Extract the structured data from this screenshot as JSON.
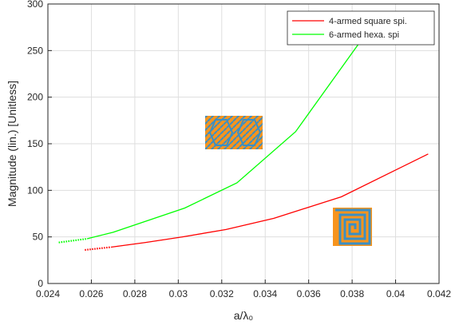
{
  "chart_data": {
    "type": "line",
    "xlabel": "a/λ₀",
    "ylabel": "Magnitude (lin.)  [Unitless]",
    "xlim": [
      0.024,
      0.042
    ],
    "xticks": [
      0.024,
      0.026,
      0.028,
      0.03,
      0.032,
      0.034,
      0.036,
      0.038,
      0.04,
      0.042
    ],
    "ylim": [
      0,
      300
    ],
    "yticks": [
      0,
      50,
      100,
      150,
      200,
      250,
      300
    ],
    "grid": true,
    "legend": "upper right",
    "series": [
      {
        "name": "4-armed square spi.",
        "color": "#ff0000",
        "segments": [
          {
            "style": "dotted",
            "x": [
              0.0257,
              0.0269
            ],
            "values": [
              36,
              39
            ]
          },
          {
            "style": "solid",
            "x": [
              0.0269,
              0.0285,
              0.0302,
              0.0322,
              0.0344,
              0.0375,
              0.0415
            ],
            "values": [
              39,
              44,
              50,
              58,
              70,
              93,
              139
            ]
          }
        ]
      },
      {
        "name": "6-armed hexa. spi",
        "color": "#00ff00",
        "segments": [
          {
            "style": "dotted",
            "x": [
              0.0245,
              0.0258
            ],
            "values": [
              44,
              48
            ]
          },
          {
            "style": "solid",
            "x": [
              0.0258,
              0.027,
              0.0303,
              0.0327,
              0.0354,
              0.039
            ],
            "values": [
              48,
              55,
              81,
              108,
              163,
              280
            ]
          }
        ]
      }
    ]
  }
}
